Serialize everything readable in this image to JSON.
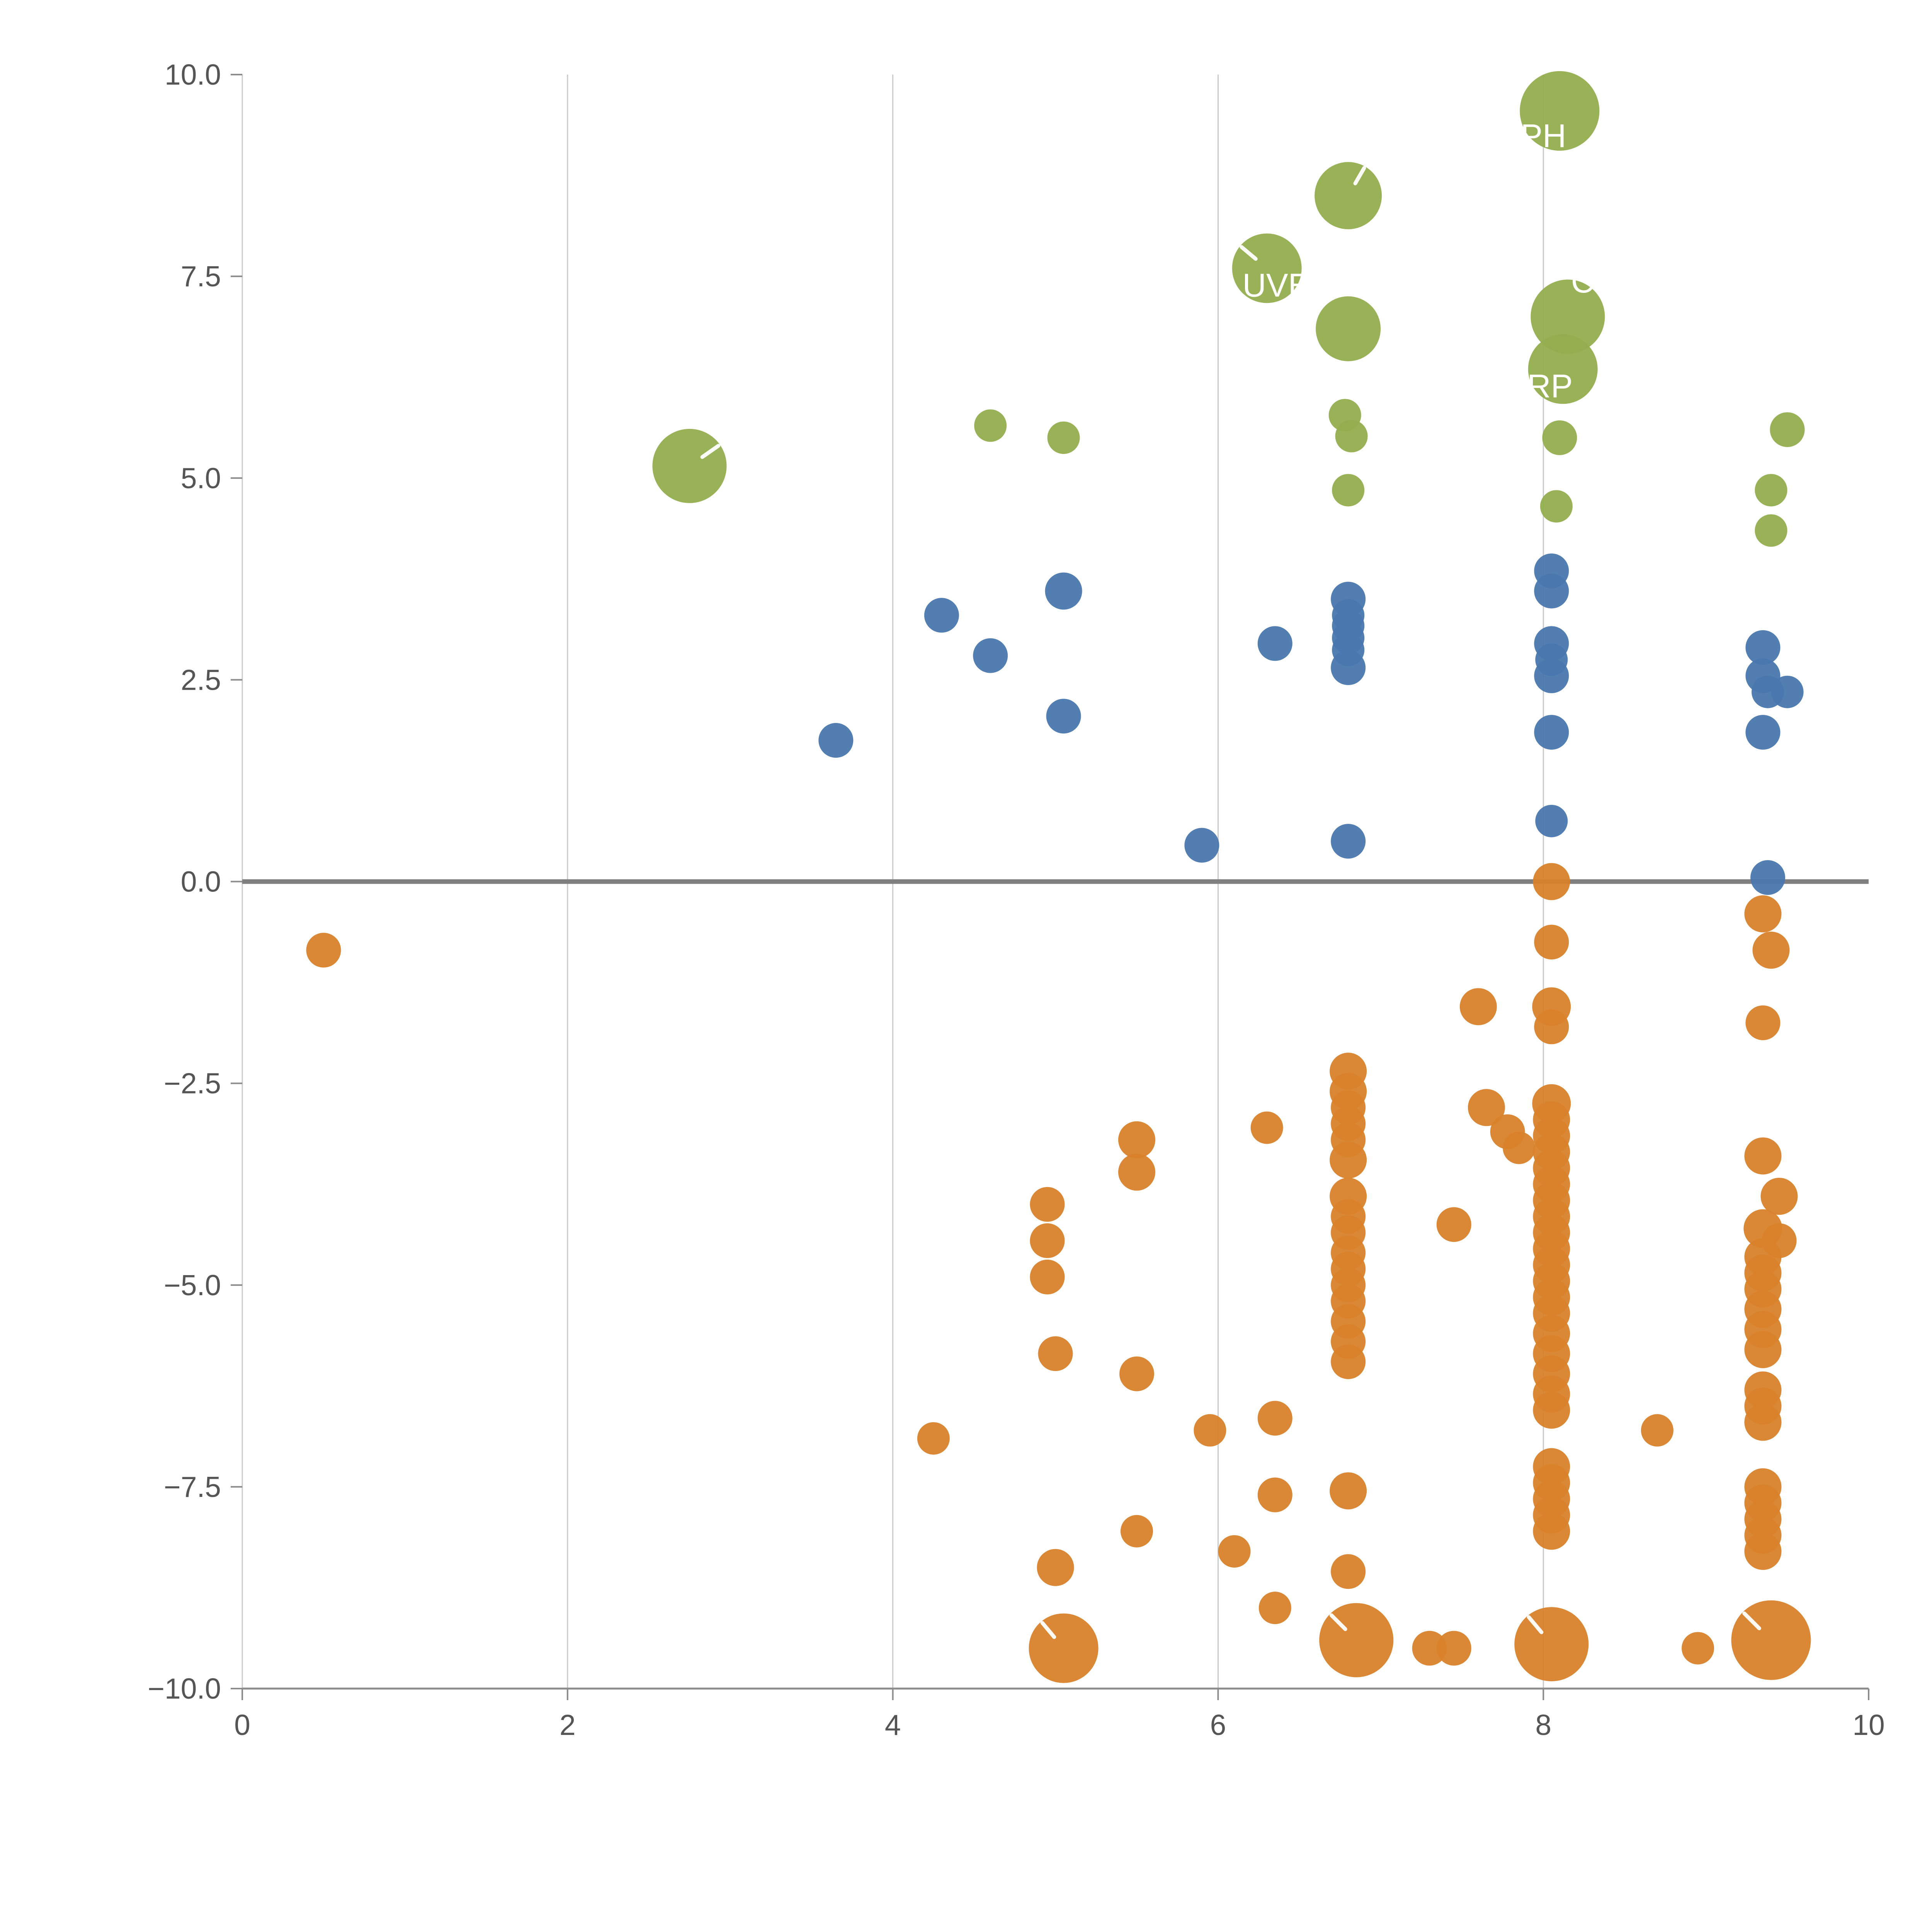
{
  "chart_data": {
    "type": "scatter",
    "title": "",
    "xlabel": "",
    "ylabel": "",
    "xlim": [
      0,
      10
    ],
    "ylim": [
      -10,
      10
    ],
    "grid": "vertical-only",
    "legend": "none",
    "x_gridlines": [
      0,
      2,
      4,
      6,
      8
    ],
    "x_ticks": [
      0,
      2,
      4,
      6,
      8,
      10
    ],
    "x_tick_labels": [
      "0",
      "2",
      "4",
      "6",
      "8",
      "10"
    ],
    "y_ticks": [
      10,
      7.5,
      5,
      2.5,
      0,
      -2.5,
      -5,
      -7.5,
      -10
    ],
    "y_tick_labels": [
      "10.0",
      "7.5",
      "5.0",
      "2.5",
      "0.0",
      "−2.5",
      "−5.0",
      "−7.5",
      "−10.0"
    ],
    "zero_line_y": 0,
    "colors": {
      "green": "#93AE4F",
      "blue": "#4A77AE",
      "orange": "#D9822B",
      "grid": "#c9c9c9",
      "spine": "#8c8c8c",
      "zero_line": "#7f7f7f",
      "tick_label": "#555555",
      "bubble_label": "#ffffff"
    },
    "series": [
      {
        "name": "green",
        "color": "#93AE4F",
        "points": [
          [
            2.75,
            5.15,
            96
          ],
          [
            4.6,
            5.65,
            42
          ],
          [
            5.05,
            5.5,
            42
          ],
          [
            6.3,
            7.6,
            90
          ],
          [
            6.8,
            8.5,
            87
          ],
          [
            6.8,
            6.85,
            84
          ],
          [
            6.78,
            5.78,
            42
          ],
          [
            6.82,
            5.52,
            42
          ],
          [
            6.8,
            4.85,
            42
          ],
          [
            8.1,
            9.55,
            103
          ],
          [
            8.15,
            7.0,
            96
          ],
          [
            8.12,
            6.35,
            90
          ],
          [
            8.1,
            5.5,
            45
          ],
          [
            8.08,
            4.65,
            42
          ],
          [
            9.5,
            5.6,
            45
          ],
          [
            9.4,
            4.85,
            42
          ],
          [
            9.4,
            4.35,
            42
          ]
        ]
      },
      {
        "name": "blue",
        "color": "#4A77AE",
        "points": [
          [
            3.65,
            1.75,
            45
          ],
          [
            4.3,
            3.3,
            45
          ],
          [
            4.6,
            2.8,
            45
          ],
          [
            5.05,
            3.6,
            48
          ],
          [
            5.05,
            2.05,
            45
          ],
          [
            5.9,
            0.45,
            45
          ],
          [
            6.35,
            2.95,
            45
          ],
          [
            6.8,
            3.5,
            45
          ],
          [
            6.8,
            3.3,
            42
          ],
          [
            6.8,
            3.17,
            42
          ],
          [
            6.8,
            3.02,
            42
          ],
          [
            6.8,
            2.87,
            42
          ],
          [
            6.8,
            2.65,
            45
          ],
          [
            6.8,
            0.5,
            45
          ],
          [
            8.05,
            3.85,
            45
          ],
          [
            8.05,
            3.6,
            45
          ],
          [
            8.05,
            2.95,
            45
          ],
          [
            8.05,
            2.75,
            42
          ],
          [
            8.05,
            2.55,
            45
          ],
          [
            8.05,
            1.85,
            45
          ],
          [
            8.05,
            0.75,
            42
          ],
          [
            9.35,
            2.9,
            45
          ],
          [
            9.35,
            2.55,
            45
          ],
          [
            9.38,
            2.35,
            42
          ],
          [
            9.5,
            2.35,
            42
          ],
          [
            9.35,
            1.85,
            45
          ],
          [
            9.38,
            0.05,
            45
          ]
        ]
      },
      {
        "name": "orange",
        "color": "#D9822B",
        "points": [
          [
            0.5,
            -0.85,
            45
          ],
          [
            4.25,
            -6.9,
            42
          ],
          [
            4.95,
            -4.0,
            45
          ],
          [
            4.95,
            -4.45,
            45
          ],
          [
            4.95,
            -4.9,
            45
          ],
          [
            5.0,
            -5.85,
            45
          ],
          [
            5.0,
            -8.5,
            48
          ],
          [
            5.05,
            -9.5,
            90
          ],
          [
            5.5,
            -3.2,
            48
          ],
          [
            5.5,
            -3.6,
            48
          ],
          [
            5.5,
            -6.1,
            45
          ],
          [
            5.5,
            -8.05,
            42
          ],
          [
            5.95,
            -6.8,
            42
          ],
          [
            6.1,
            -8.3,
            42
          ],
          [
            6.3,
            -3.05,
            42
          ],
          [
            6.35,
            -6.65,
            45
          ],
          [
            6.35,
            -7.6,
            45
          ],
          [
            6.35,
            -9.0,
            42
          ],
          [
            6.8,
            -2.35,
            48
          ],
          [
            6.8,
            -2.6,
            48
          ],
          [
            6.8,
            -2.8,
            45
          ],
          [
            6.8,
            -3.0,
            45
          ],
          [
            6.8,
            -3.2,
            45
          ],
          [
            6.8,
            -3.45,
            48
          ],
          [
            6.8,
            -3.9,
            48
          ],
          [
            6.8,
            -4.15,
            45
          ],
          [
            6.8,
            -4.35,
            45
          ],
          [
            6.8,
            -4.6,
            45
          ],
          [
            6.8,
            -4.8,
            45
          ],
          [
            6.8,
            -5.0,
            45
          ],
          [
            6.8,
            -5.2,
            45
          ],
          [
            6.8,
            -5.45,
            45
          ],
          [
            6.8,
            -5.7,
            45
          ],
          [
            6.8,
            -5.95,
            45
          ],
          [
            6.8,
            -7.55,
            48
          ],
          [
            6.8,
            -8.55,
            45
          ],
          [
            6.85,
            -9.4,
            96
          ],
          [
            7.3,
            -9.5,
            45
          ],
          [
            7.45,
            -9.5,
            45
          ],
          [
            7.45,
            -4.25,
            45
          ],
          [
            7.6,
            -1.55,
            48
          ],
          [
            7.65,
            -2.8,
            48
          ],
          [
            7.78,
            -3.1,
            45
          ],
          [
            7.85,
            -3.3,
            42
          ],
          [
            8.05,
            0.0,
            48
          ],
          [
            8.05,
            -0.75,
            45
          ],
          [
            8.05,
            -1.55,
            50
          ],
          [
            8.05,
            -1.8,
            45
          ],
          [
            8.05,
            -2.75,
            50
          ],
          [
            8.05,
            -2.95,
            48
          ],
          [
            8.05,
            -3.15,
            48
          ],
          [
            8.05,
            -3.35,
            48
          ],
          [
            8.05,
            -3.55,
            48
          ],
          [
            8.05,
            -3.75,
            48
          ],
          [
            8.05,
            -3.95,
            48
          ],
          [
            8.05,
            -4.15,
            48
          ],
          [
            8.05,
            -4.35,
            48
          ],
          [
            8.05,
            -4.55,
            48
          ],
          [
            8.05,
            -4.75,
            48
          ],
          [
            8.05,
            -4.95,
            48
          ],
          [
            8.05,
            -5.15,
            48
          ],
          [
            8.05,
            -5.35,
            48
          ],
          [
            8.05,
            -5.6,
            48
          ],
          [
            8.05,
            -5.85,
            48
          ],
          [
            8.05,
            -6.1,
            48
          ],
          [
            8.05,
            -6.35,
            48
          ],
          [
            8.05,
            -6.55,
            48
          ],
          [
            8.05,
            -7.25,
            48
          ],
          [
            8.05,
            -7.45,
            48
          ],
          [
            8.05,
            -7.65,
            48
          ],
          [
            8.05,
            -7.85,
            48
          ],
          [
            8.05,
            -8.05,
            48
          ],
          [
            8.05,
            -9.45,
            96
          ],
          [
            8.7,
            -6.8,
            42
          ],
          [
            8.95,
            -9.5,
            42
          ],
          [
            9.35,
            -0.4,
            48
          ],
          [
            9.4,
            -0.85,
            48
          ],
          [
            9.35,
            -1.75,
            45
          ],
          [
            9.35,
            -3.4,
            48
          ],
          [
            9.45,
            -3.9,
            48
          ],
          [
            9.35,
            -4.3,
            50
          ],
          [
            9.45,
            -4.45,
            45
          ],
          [
            9.35,
            -4.65,
            48
          ],
          [
            9.35,
            -4.85,
            48
          ],
          [
            9.35,
            -5.05,
            48
          ],
          [
            9.35,
            -5.3,
            48
          ],
          [
            9.35,
            -5.55,
            48
          ],
          [
            9.35,
            -5.8,
            48
          ],
          [
            9.35,
            -6.3,
            48
          ],
          [
            9.35,
            -6.5,
            48
          ],
          [
            9.35,
            -6.7,
            48
          ],
          [
            9.35,
            -7.5,
            48
          ],
          [
            9.35,
            -7.7,
            48
          ],
          [
            9.35,
            -7.9,
            48
          ],
          [
            9.35,
            -8.1,
            48
          ],
          [
            9.35,
            -8.3,
            48
          ],
          [
            9.4,
            -9.4,
            103
          ]
        ]
      }
    ],
    "annotations": [
      {
        "text": "PH",
        "x": 7.86,
        "y": 9.1
      },
      {
        "text": "UVE",
        "x": 6.15,
        "y": 7.25
      },
      {
        "text": "C",
        "x": 8.17,
        "y": 7.3
      },
      {
        "text": "RP",
        "x": 7.9,
        "y": 6.0
      }
    ],
    "bubble_ticks": [
      {
        "x": 2.75,
        "y": 5.15,
        "r": 96,
        "angle": 35
      },
      {
        "x": 6.8,
        "y": 8.5,
        "r": 87,
        "angle": 60
      },
      {
        "x": 6.3,
        "y": 7.6,
        "r": 90,
        "angle": 140
      },
      {
        "x": 5.05,
        "y": -9.5,
        "r": 90,
        "angle": 130
      },
      {
        "x": 6.85,
        "y": -9.4,
        "r": 96,
        "angle": 135
      },
      {
        "x": 8.05,
        "y": -9.45,
        "r": 96,
        "angle": 130
      },
      {
        "x": 9.4,
        "y": -9.4,
        "r": 103,
        "angle": 135
      }
    ]
  }
}
